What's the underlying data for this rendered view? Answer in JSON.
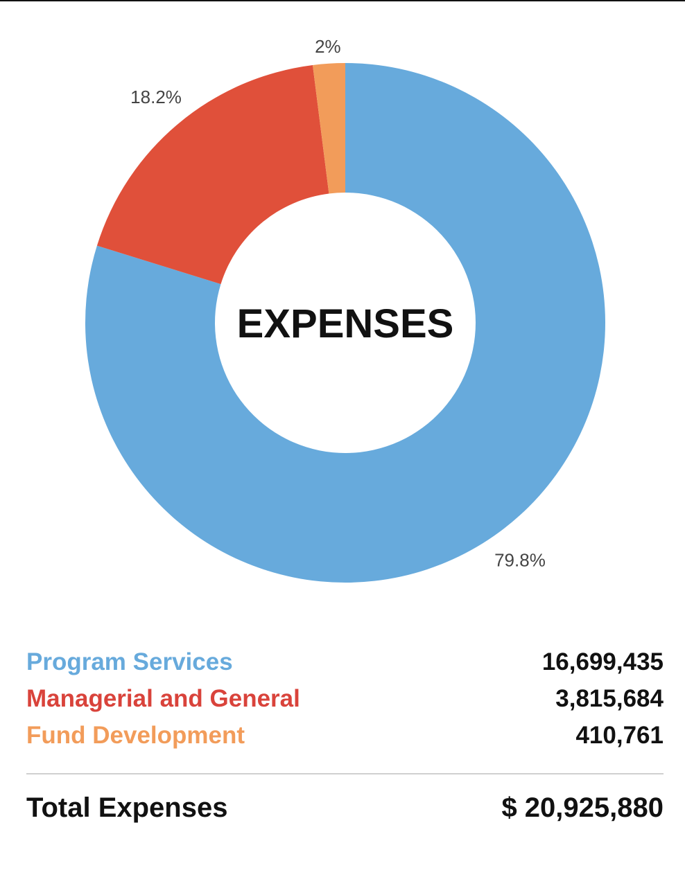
{
  "chart_data": {
    "type": "pie",
    "style": "donut",
    "center_label": "EXPENSES",
    "slices": [
      {
        "name": "Program Services",
        "value": 16699435,
        "percent_label": "79.8%",
        "percent": 79.8,
        "color": "#67aadc"
      },
      {
        "name": "Managerial and General",
        "value": 3815684,
        "percent_label": "18.2%",
        "percent": 18.2,
        "color": "#e0503a"
      },
      {
        "name": "Fund Development",
        "value": 410761,
        "percent_label": "2%",
        "percent": 2.0,
        "color": "#f29c5a"
      }
    ],
    "legend_colors": [
      "#67aadc",
      "#d9433b",
      "#f29c5a"
    ],
    "legend": [
      {
        "label": "Program Services",
        "amount": "16,699,435"
      },
      {
        "label": "Managerial and General",
        "amount": "3,815,684"
      },
      {
        "label": "Fund Development",
        "amount": "410,761"
      }
    ],
    "total": {
      "label": "Total Expenses",
      "amount": "$ 20,925,880"
    }
  }
}
